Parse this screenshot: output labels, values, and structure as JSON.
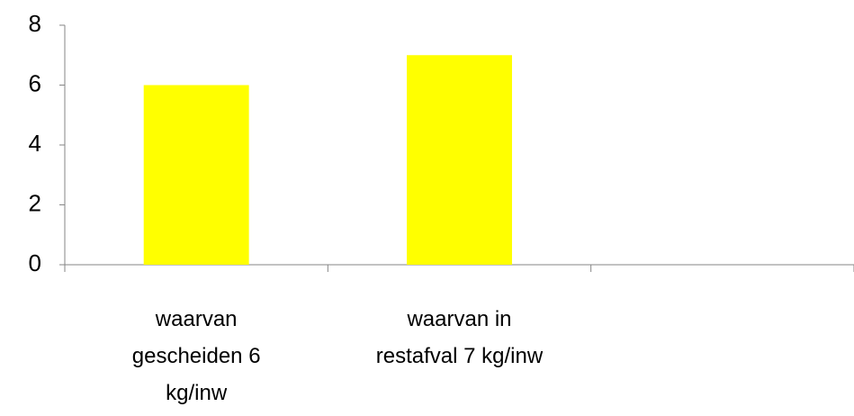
{
  "chart_data": {
    "type": "bar",
    "categories": [
      "waarvan gescheiden 6 kg/inw",
      "waarvan in restafval 7 kg/inw",
      null
    ],
    "values": [
      6,
      7,
      null
    ],
    "color": "#ffff00",
    "ylim": [
      0,
      8
    ],
    "yticks": [
      0,
      2,
      4,
      6,
      8
    ],
    "grid": false
  }
}
